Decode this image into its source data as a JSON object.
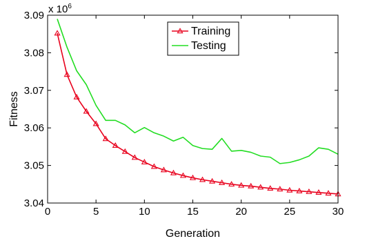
{
  "chart_data": {
    "type": "line",
    "xlabel": "Generation",
    "ylabel": "Fitness",
    "xlim": [
      0,
      30
    ],
    "ylim": [
      3.04,
      3.09
    ],
    "y_scale_label": "x 10",
    "y_scale_exponent": "6",
    "x_ticks": [
      0,
      5,
      10,
      15,
      20,
      25,
      30
    ],
    "x_tick_labels": [
      "0",
      "5",
      "10",
      "15",
      "20",
      "25",
      "30"
    ],
    "y_ticks": [
      3.04,
      3.05,
      3.06,
      3.07,
      3.08,
      3.09
    ],
    "y_tick_labels": [
      "3.04",
      "3.05",
      "3.06",
      "3.07",
      "3.08",
      "3.09"
    ],
    "grid": false,
    "legend_position": "top-center",
    "series": [
      {
        "name": "Training",
        "color": "#e8001c",
        "marker": "triangle",
        "line_style": "solid",
        "x": [
          1,
          2,
          3,
          4,
          5,
          6,
          7,
          8,
          9,
          10,
          11,
          12,
          13,
          14,
          15,
          16,
          17,
          18,
          19,
          20,
          21,
          22,
          23,
          24,
          25,
          26,
          27,
          28,
          29,
          30
        ],
        "y": [
          3.0852,
          3.0742,
          3.0682,
          3.0644,
          3.0611,
          3.0571,
          3.0553,
          3.0537,
          3.0521,
          3.0509,
          3.0497,
          3.0488,
          3.048,
          3.0473,
          3.0467,
          3.0462,
          3.0458,
          3.0454,
          3.045,
          3.0447,
          3.0445,
          3.0442,
          3.0439,
          3.0437,
          3.0434,
          3.0432,
          3.043,
          3.0428,
          3.0426,
          3.0424
        ]
      },
      {
        "name": "Testing",
        "color": "#22dd22",
        "marker": "none",
        "line_style": "solid",
        "x": [
          1,
          2,
          3,
          4,
          5,
          6,
          7,
          8,
          9,
          10,
          11,
          12,
          13,
          14,
          15,
          16,
          17,
          18,
          19,
          20,
          21,
          22,
          23,
          24,
          25,
          26,
          27,
          28,
          29,
          30
        ],
        "y": [
          3.089,
          3.0815,
          3.0752,
          3.0715,
          3.066,
          3.062,
          3.062,
          3.0608,
          3.0587,
          3.0601,
          3.0587,
          3.0578,
          3.0565,
          3.0575,
          3.0553,
          3.0545,
          3.0543,
          3.0572,
          3.0538,
          3.054,
          3.0535,
          3.0525,
          3.0522,
          3.0505,
          3.0508,
          3.0515,
          3.0525,
          3.0547,
          3.0543,
          3.053
        ]
      }
    ]
  }
}
